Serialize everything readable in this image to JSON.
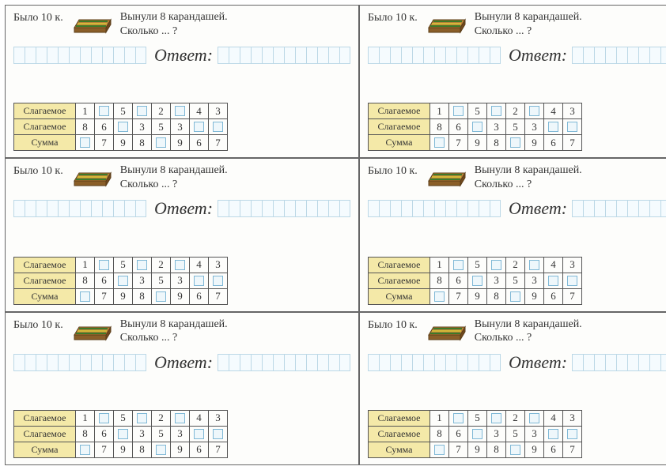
{
  "card": {
    "premise": "Было 10 к.",
    "question_line1": "Вынули 8 карандашей.",
    "question_line2": "Сколько ... ?",
    "answer_label": "Ответ:",
    "table": {
      "row_labels": [
        "Слагаемое",
        "Слагаемое",
        "Сумма"
      ],
      "rows": [
        [
          "1",
          "",
          "5",
          "",
          "2",
          "",
          "4",
          "3"
        ],
        [
          "8",
          "6",
          "",
          "3",
          "5",
          "3",
          "",
          ""
        ],
        [
          "",
          "7",
          "9",
          "8",
          "",
          "9",
          "6",
          "7"
        ]
      ]
    }
  },
  "layout": {
    "rows": 3,
    "cols": 2,
    "answer_pre_squares": 12,
    "answer_post_squares": 12
  },
  "colors": {
    "border": "#666666",
    "table_header_bg": "#f4e9a8",
    "grid_line": "#bcd8e6",
    "blank_box_border": "#7fb8d6",
    "blank_box_fill": "#eef7fb",
    "pencil_box_top": "#b8843a",
    "pencil_box_side": "#8a5e28",
    "pencil_stripes": "#3d7a2a"
  }
}
